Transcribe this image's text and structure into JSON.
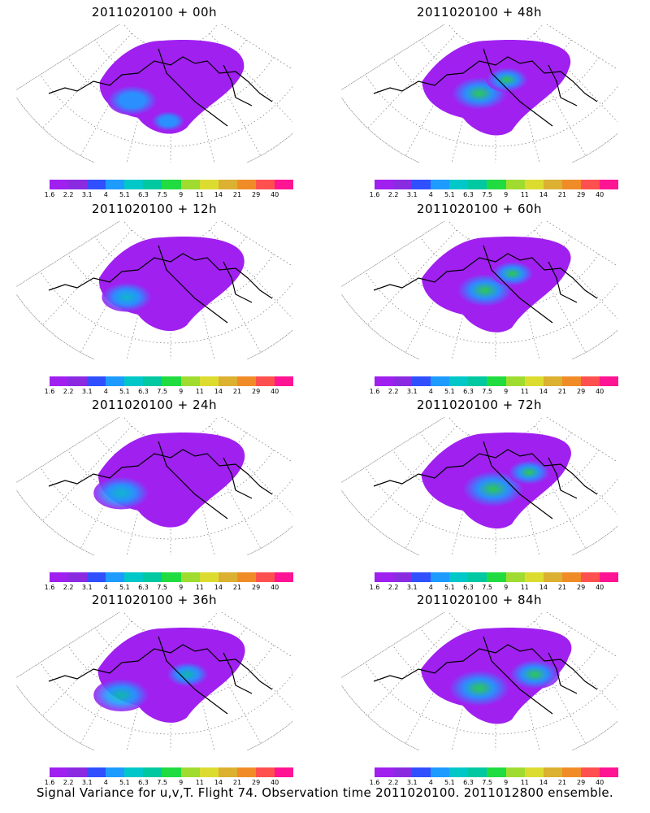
{
  "colors": [
    "#a020f0",
    "#8a2be2",
    "#3050ff",
    "#1e9bff",
    "#00c8c8",
    "#00c8a0",
    "#20dc40",
    "#a0dc30",
    "#dcdc30",
    "#dcb030",
    "#f08c28",
    "#ff5050",
    "#ff1493"
  ],
  "scale_labels": [
    "1.6",
    "2.2",
    "3.1",
    "4",
    "5.1",
    "6.3",
    "7.5",
    "9",
    "11",
    "14",
    "21",
    "29",
    "40"
  ],
  "panels": [
    {
      "title": "2011020100 + 00h",
      "hotspots": [
        [
          0.42,
          0.55,
          0.18
        ],
        [
          0.55,
          0.7,
          0.12
        ]
      ],
      "intensity": 0.1
    },
    {
      "title": "2011020100 + 48h",
      "hotspots": [
        [
          0.5,
          0.5,
          0.2
        ],
        [
          0.6,
          0.4,
          0.15
        ]
      ],
      "intensity": 0.45
    },
    {
      "title": "2011020100 + 12h",
      "hotspots": [
        [
          0.4,
          0.55,
          0.18
        ]
      ],
      "intensity": 0.2
    },
    {
      "title": "2011020100 + 60h",
      "hotspots": [
        [
          0.52,
          0.5,
          0.2
        ],
        [
          0.62,
          0.38,
          0.15
        ]
      ],
      "intensity": 0.5
    },
    {
      "title": "2011020100 + 24h",
      "hotspots": [
        [
          0.38,
          0.55,
          0.2
        ]
      ],
      "intensity": 0.3
    },
    {
      "title": "2011020100 + 72h",
      "hotspots": [
        [
          0.55,
          0.52,
          0.22
        ],
        [
          0.68,
          0.4,
          0.15
        ]
      ],
      "intensity": 0.55
    },
    {
      "title": "2011020100 + 36h",
      "hotspots": [
        [
          0.38,
          0.6,
          0.2
        ],
        [
          0.62,
          0.45,
          0.15
        ]
      ],
      "intensity": 0.35
    },
    {
      "title": "2011020100 + 84h",
      "hotspots": [
        [
          0.5,
          0.55,
          0.22
        ],
        [
          0.7,
          0.45,
          0.18
        ]
      ],
      "intensity": 0.6
    }
  ],
  "footer": "Signal Variance for u,v,T. Flight 74. Observation time 2011020100. 2011012800 ensemble."
}
